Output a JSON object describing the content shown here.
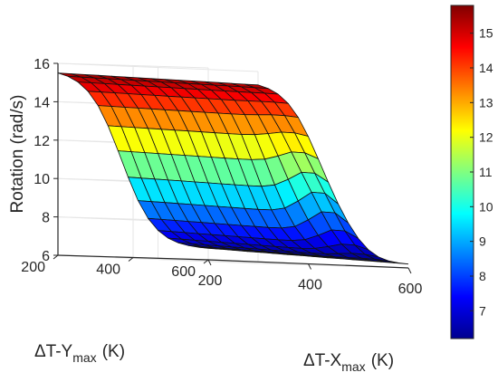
{
  "chart_data": {
    "type": "surface",
    "colormap": "jet",
    "xlabel": {
      "base": "ΔT-X",
      "sub": "max",
      "unit": "(K)"
    },
    "ylabel": {
      "base": "ΔT-Y",
      "sub": "max",
      "unit": "(K)"
    },
    "zlabel": "Rotation (rad/s)",
    "xlim": [
      200,
      600
    ],
    "ylim": [
      200,
      600
    ],
    "zlim": [
      6,
      16
    ],
    "x_ticks": [
      "200",
      "400",
      "600"
    ],
    "y_ticks": [
      "200",
      "400",
      "600"
    ],
    "z_ticks": [
      "6",
      "8",
      "10",
      "12",
      "14",
      "16"
    ],
    "colorbar": {
      "range": [
        6.2,
        15.8
      ],
      "ticks": [
        "7",
        "8",
        "9",
        "10",
        "11",
        "12",
        "13",
        "14",
        "15"
      ]
    },
    "grid": true,
    "mesh_size": [
      16,
      16
    ],
    "surface_corners": {
      "x200_y200": 15.5,
      "x600_y200": 15.3,
      "x200_y600": 6.6,
      "x600_y600": 6.2
    }
  }
}
